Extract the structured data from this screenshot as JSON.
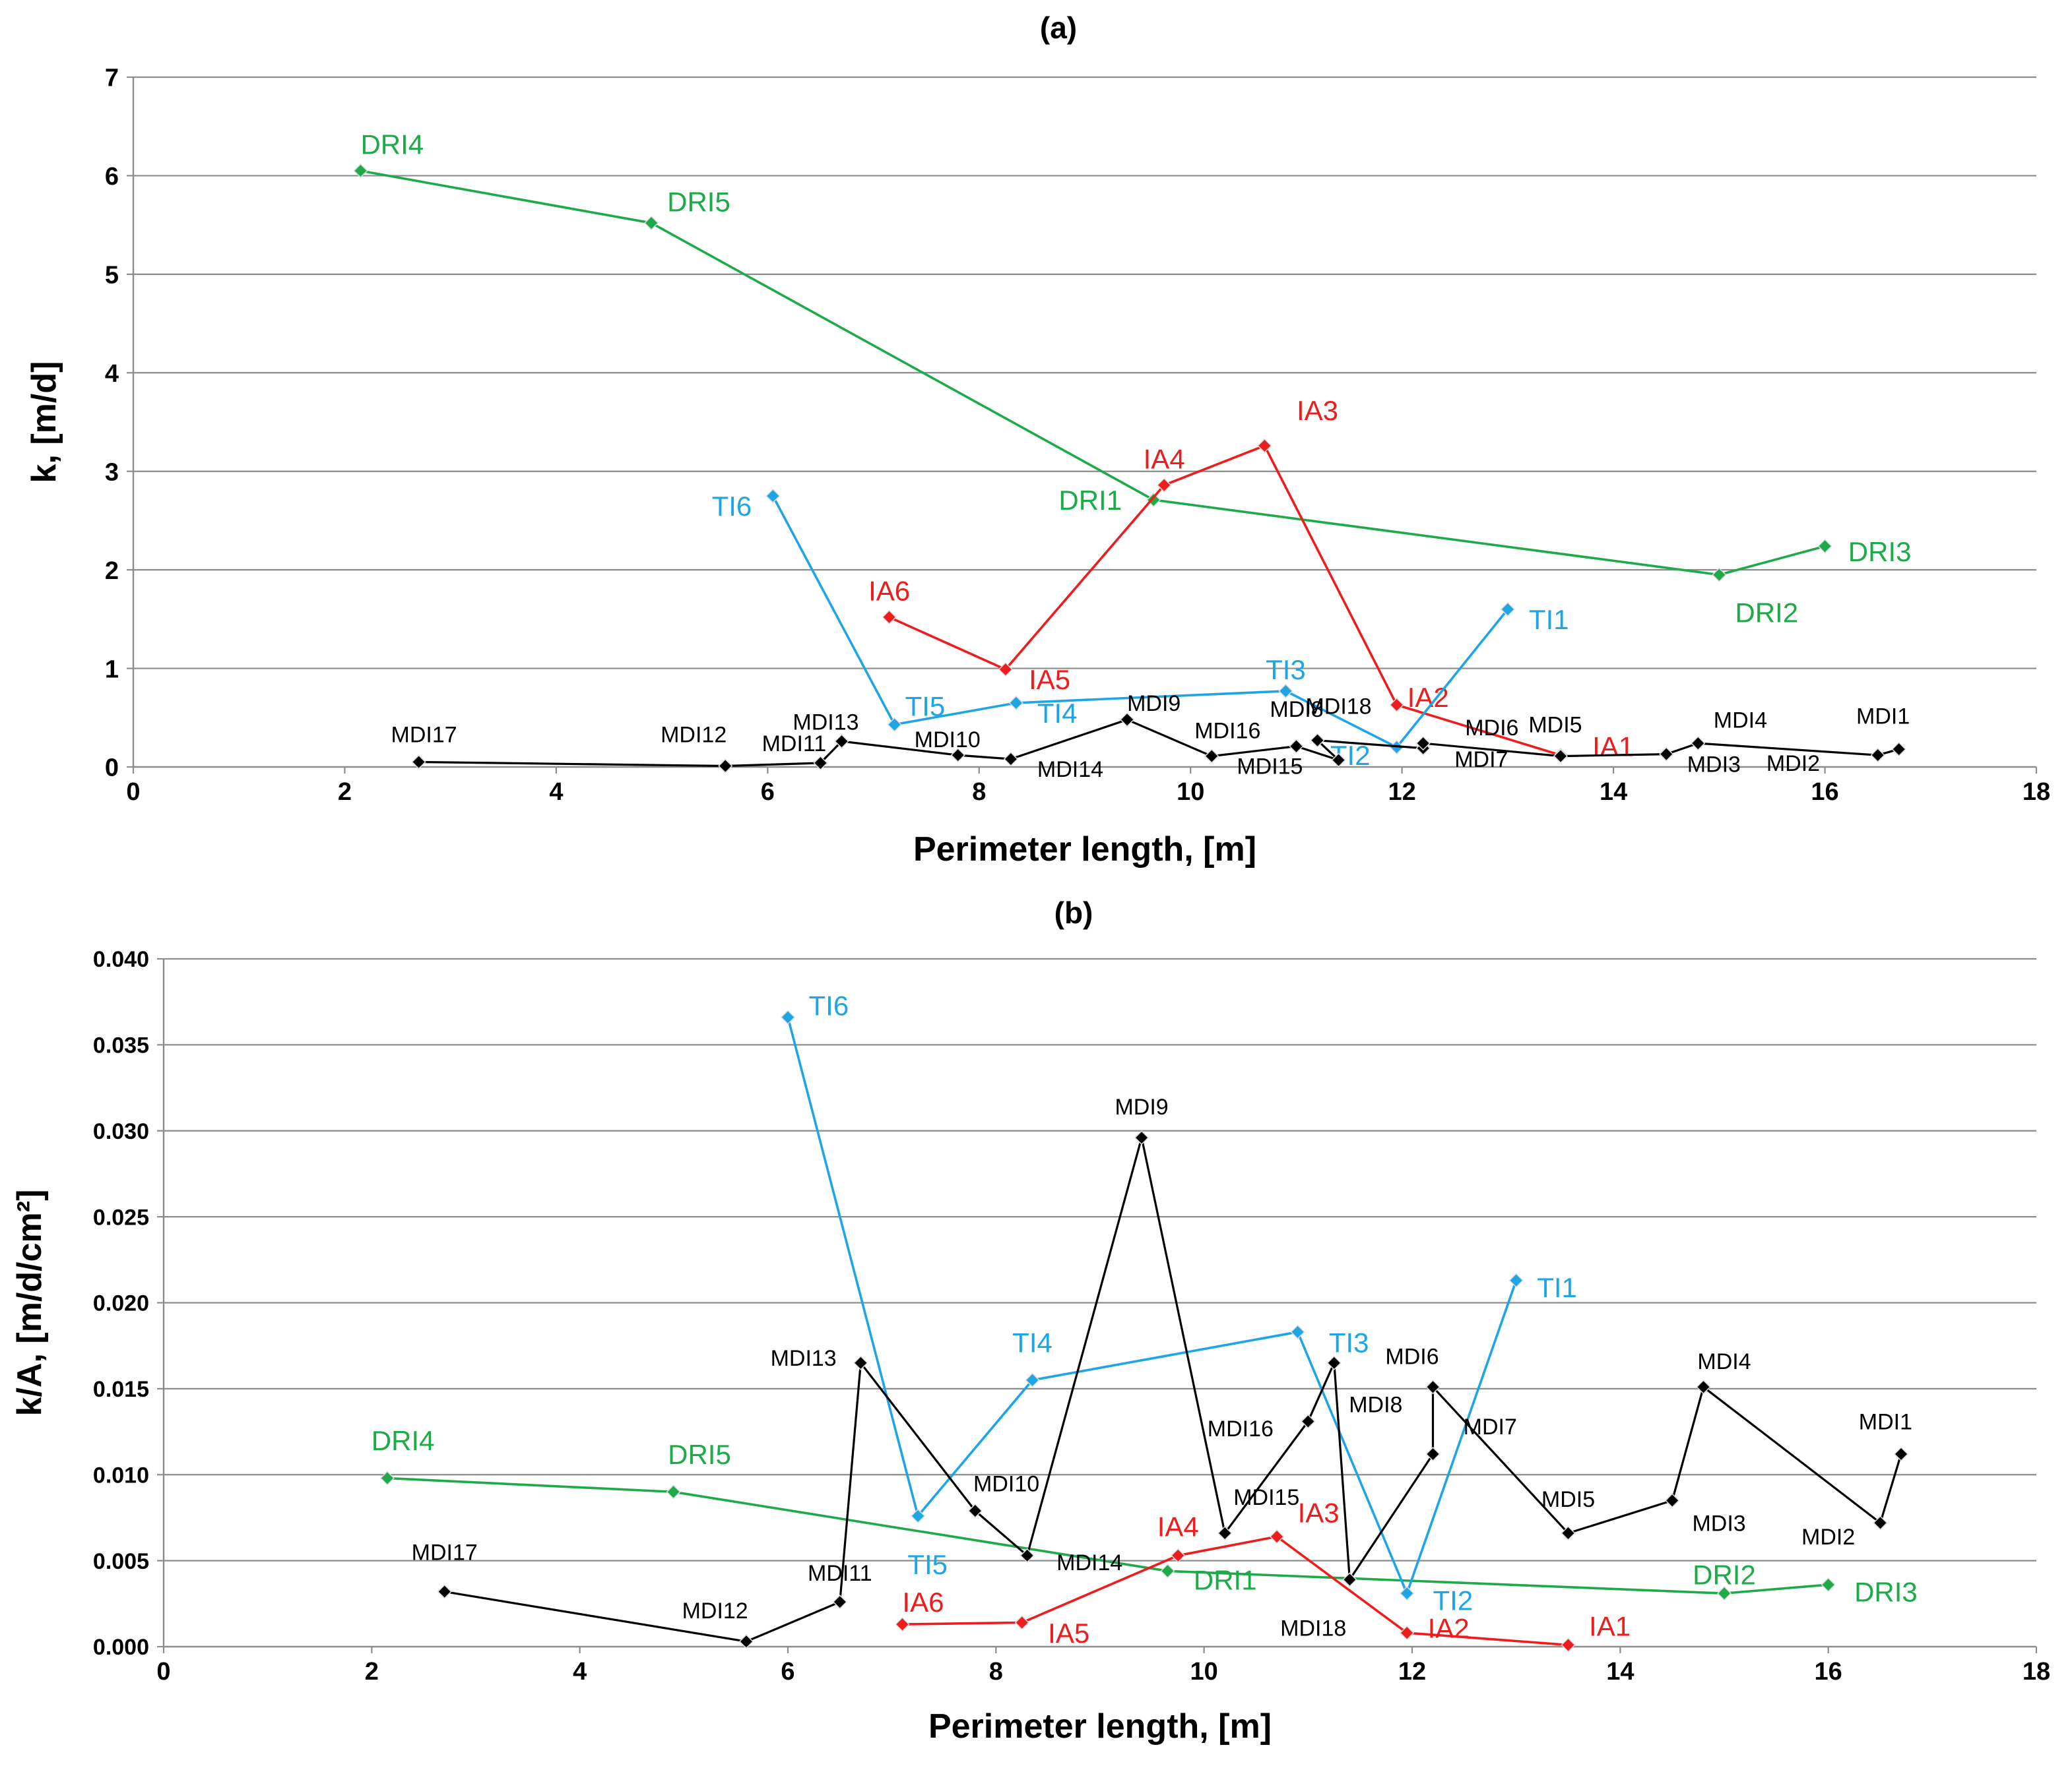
{
  "colors": {
    "green": "#1faa4a",
    "red": "#ee1c1c",
    "blue": "#1ea5e6",
    "black": "#000000",
    "grid": "#8c8c8c"
  },
  "chart_data": [
    {
      "type": "line",
      "title": "(a)",
      "xlabel": "Perimeter length, [m]",
      "ylabel": "k, [m/d]",
      "xlim": [
        0,
        18
      ],
      "ylim": [
        0,
        7
      ],
      "xticks": [
        "0",
        "2",
        "4",
        "6",
        "8",
        "10",
        "12",
        "14",
        "16",
        "18"
      ],
      "yticks": [
        "0",
        "1",
        "2",
        "3",
        "4",
        "5",
        "6",
        "7"
      ],
      "grid": true,
      "series": [
        {
          "name": "DRI",
          "color": "#1faa4a",
          "points": [
            {
              "x": 2.15,
              "y": 6.05,
              "label": "DRI4",
              "lx": 0.0,
              "ly": 0.27,
              "anchor": "start"
            },
            {
              "x": 4.9,
              "y": 5.52,
              "label": "DRI5",
              "lx": 0.15,
              "ly": 0.22,
              "anchor": "start"
            },
            {
              "x": 9.65,
              "y": 2.71,
              "label": "DRI1",
              "lx": -0.3,
              "ly": 0.0,
              "anchor": "end"
            },
            {
              "x": 15.0,
              "y": 1.95,
              "label": "DRI2",
              "lx": 0.15,
              "ly": -0.38,
              "anchor": "start"
            },
            {
              "x": 16.0,
              "y": 2.24,
              "label": "DRI3",
              "lx": 0.22,
              "ly": -0.05,
              "anchor": "start"
            }
          ]
        },
        {
          "name": "IA",
          "color": "#ee1c1c",
          "points": [
            {
              "x": 7.15,
              "y": 1.52,
              "label": "IA6",
              "lx": 0.0,
              "ly": 0.27,
              "anchor": "middle"
            },
            {
              "x": 8.25,
              "y": 0.99,
              "label": "IA5",
              "lx": 0.22,
              "ly": -0.1,
              "anchor": "start"
            },
            {
              "x": 9.75,
              "y": 2.86,
              "label": "IA4",
              "lx": 0.0,
              "ly": 0.27,
              "anchor": "middle"
            },
            {
              "x": 10.7,
              "y": 3.26,
              "label": "IA3",
              "lx": 0.5,
              "ly": 0.36,
              "anchor": "middle"
            },
            {
              "x": 11.95,
              "y": 0.63,
              "label": "IA2",
              "lx": 0.1,
              "ly": 0.08,
              "anchor": "start"
            },
            {
              "x": 13.5,
              "y": 0.12,
              "label": "IA1",
              "lx": 0.3,
              "ly": 0.09,
              "anchor": "start"
            }
          ]
        },
        {
          "name": "TI",
          "color": "#1ea5e6",
          "points": [
            {
              "x": 6.05,
              "y": 2.75,
              "label": "TI6",
              "lx": -0.2,
              "ly": -0.1,
              "anchor": "end"
            },
            {
              "x": 7.2,
              "y": 0.43,
              "label": "TI5",
              "lx": 0.1,
              "ly": 0.19,
              "anchor": "start"
            },
            {
              "x": 8.35,
              "y": 0.65,
              "label": "TI4",
              "lx": 0.2,
              "ly": -0.1,
              "anchor": "start"
            },
            {
              "x": 10.9,
              "y": 0.77,
              "label": "TI3",
              "lx": 0.0,
              "ly": 0.22,
              "anchor": "middle"
            },
            {
              "x": 11.95,
              "y": 0.2,
              "label": "TI2",
              "lx": -0.25,
              "ly": -0.08,
              "anchor": "end"
            },
            {
              "x": 13.0,
              "y": 1.6,
              "label": "TI1",
              "lx": 0.2,
              "ly": -0.1,
              "anchor": "start"
            }
          ]
        },
        {
          "name": "MDI",
          "color": "#000000",
          "points": [
            {
              "x": 2.7,
              "y": 0.05,
              "label": "MDI17",
              "lx": 0.05,
              "ly": 0.28,
              "anchor": "middle"
            },
            {
              "x": 5.6,
              "y": 0.01,
              "label": "MDI12",
              "lx": -0.3,
              "ly": 0.32,
              "anchor": "middle"
            },
            {
              "x": 6.5,
              "y": 0.04,
              "label": "MDI11",
              "lx": -0.25,
              "ly": 0.2,
              "anchor": "middle"
            },
            {
              "x": 6.7,
              "y": 0.26,
              "label": "MDI13",
              "lx": -0.15,
              "ly": 0.2,
              "anchor": "middle"
            },
            {
              "x": 7.8,
              "y": 0.12,
              "label": "MDI10",
              "lx": -0.1,
              "ly": 0.16,
              "anchor": "middle"
            },
            {
              "x": 8.3,
              "y": 0.08,
              "label": "MDI14",
              "lx": 0.25,
              "ly": -0.1,
              "anchor": "start"
            },
            {
              "x": 9.4,
              "y": 0.48,
              "label": "MDI9",
              "lx": 0.0,
              "ly": 0.17,
              "anchor": "start"
            },
            {
              "x": 10.2,
              "y": 0.11,
              "label": "MDI16",
              "lx": 0.15,
              "ly": 0.26,
              "anchor": "middle"
            },
            {
              "x": 11.0,
              "y": 0.21,
              "label": "MDI8",
              "lx": -0.25,
              "ly": 0.38,
              "anchor": "start"
            },
            {
              "x": 11.4,
              "y": 0.07,
              "label": "MDI15",
              "lx": -0.65,
              "ly": -0.06,
              "anchor": "middle"
            },
            {
              "x": 11.2,
              "y": 0.27,
              "label": "MDI18",
              "lx": 0.2,
              "ly": 0.35,
              "anchor": "middle"
            },
            {
              "x": 12.2,
              "y": 0.19,
              "label": "MDI7",
              "lx": 0.55,
              "ly": -0.11,
              "anchor": "middle"
            },
            {
              "x": 12.2,
              "y": 0.24,
              "label": "MDI6",
              "lx": 0.65,
              "ly": 0.16,
              "anchor": "middle"
            },
            {
              "x": 13.5,
              "y": 0.11,
              "label": "MDI5",
              "lx": -0.05,
              "ly": 0.32,
              "anchor": "middle"
            },
            {
              "x": 14.5,
              "y": 0.13,
              "label": "MDI3",
              "lx": 0.45,
              "ly": -0.1,
              "anchor": "middle"
            },
            {
              "x": 14.8,
              "y": 0.24,
              "label": "MDI4",
              "lx": 0.4,
              "ly": 0.24,
              "anchor": "middle"
            },
            {
              "x": 16.5,
              "y": 0.12,
              "label": "MDI2",
              "lx": -0.8,
              "ly": -0.08,
              "anchor": "middle"
            },
            {
              "x": 16.7,
              "y": 0.18,
              "label": "MDI1",
              "lx": -0.15,
              "ly": 0.34,
              "anchor": "middle"
            }
          ]
        }
      ]
    },
    {
      "type": "line",
      "title": "(b)",
      "xlabel": "Perimeter length, [m]",
      "ylabel": "k/A, [m/d/cm²]",
      "xlim": [
        0,
        18
      ],
      "ylim": [
        0,
        0.04
      ],
      "xticks": [
        "0",
        "2",
        "4",
        "6",
        "8",
        "10",
        "12",
        "14",
        "16",
        "18"
      ],
      "yticks": [
        "0.000",
        "0.005",
        "0.010",
        "0.015",
        "0.020",
        "0.025",
        "0.030",
        "0.035",
        "0.040"
      ],
      "grid": true,
      "series": [
        {
          "name": "DRI",
          "color": "#1faa4a",
          "points": [
            {
              "x": 2.15,
              "y": 0.0098,
              "label": "DRI4",
              "lx": 0.15,
              "ly": 0.0022,
              "anchor": "middle"
            },
            {
              "x": 4.9,
              "y": 0.009,
              "label": "DRI5",
              "lx": 0.25,
              "ly": 0.0022,
              "anchor": "middle"
            },
            {
              "x": 9.65,
              "y": 0.0044,
              "label": "DRI1",
              "lx": 0.25,
              "ly": -0.0005,
              "anchor": "start"
            },
            {
              "x": 15.0,
              "y": 0.0031,
              "label": "DRI2",
              "lx": 0.0,
              "ly": 0.0011,
              "anchor": "middle"
            },
            {
              "x": 16.0,
              "y": 0.0036,
              "label": "DRI3",
              "lx": 0.25,
              "ly": -0.0004,
              "anchor": "start"
            }
          ]
        },
        {
          "name": "IA",
          "color": "#ee1c1c",
          "points": [
            {
              "x": 7.1,
              "y": 0.0013,
              "label": "IA6",
              "lx": 0.0,
              "ly": 0.0013,
              "anchor": "start"
            },
            {
              "x": 8.25,
              "y": 0.0014,
              "label": "IA5",
              "lx": 0.25,
              "ly": -0.0006,
              "anchor": "start"
            },
            {
              "x": 9.75,
              "y": 0.0053,
              "label": "IA4",
              "lx": 0.0,
              "ly": 0.0017,
              "anchor": "middle"
            },
            {
              "x": 10.7,
              "y": 0.0064,
              "label": "IA3",
              "lx": 0.2,
              "ly": 0.0014,
              "anchor": "start"
            },
            {
              "x": 11.95,
              "y": 0.0008,
              "label": "IA2",
              "lx": 0.2,
              "ly": 0.0003,
              "anchor": "start"
            },
            {
              "x": 13.5,
              "y": 0.0001,
              "label": "IA1",
              "lx": 0.2,
              "ly": 0.0011,
              "anchor": "start"
            }
          ]
        },
        {
          "name": "TI",
          "color": "#1ea5e6",
          "points": [
            {
              "x": 6.0,
              "y": 0.0366,
              "label": "TI6",
              "lx": 0.2,
              "ly": 0.0007,
              "anchor": "start"
            },
            {
              "x": 7.25,
              "y": 0.0076,
              "label": "TI5",
              "lx": -0.1,
              "ly": -0.0028,
              "anchor": "start"
            },
            {
              "x": 8.35,
              "y": 0.0155,
              "label": "TI4",
              "lx": 0.0,
              "ly": 0.0022,
              "anchor": "middle"
            },
            {
              "x": 10.9,
              "y": 0.0183,
              "label": "TI3",
              "lx": 0.3,
              "ly": -0.0006,
              "anchor": "start"
            },
            {
              "x": 11.95,
              "y": 0.0031,
              "label": "TI2",
              "lx": 0.25,
              "ly": -0.0004,
              "anchor": "start"
            },
            {
              "x": 13.0,
              "y": 0.0213,
              "label": "TI1",
              "lx": 0.2,
              "ly": -0.0004,
              "anchor": "start"
            }
          ]
        },
        {
          "name": "MDI",
          "color": "#000000",
          "points": [
            {
              "x": 2.7,
              "y": 0.0032,
              "label": "MDI17",
              "lx": 0.0,
              "ly": 0.0023,
              "anchor": "middle"
            },
            {
              "x": 5.6,
              "y": 0.0003,
              "label": "MDI12",
              "lx": -0.3,
              "ly": 0.0018,
              "anchor": "middle"
            },
            {
              "x": 6.5,
              "y": 0.0026,
              "label": "MDI11",
              "lx": 0.0,
              "ly": 0.0017,
              "anchor": "middle"
            },
            {
              "x": 6.7,
              "y": 0.0165,
              "label": "MDI13",
              "lx": -0.55,
              "ly": 0.0003,
              "anchor": "middle"
            },
            {
              "x": 7.8,
              "y": 0.0079,
              "label": "MDI10",
              "lx": 0.3,
              "ly": 0.0016,
              "anchor": "middle"
            },
            {
              "x": 8.3,
              "y": 0.0053,
              "label": "MDI14",
              "lx": 0.6,
              "ly": -0.0004,
              "anchor": "middle"
            },
            {
              "x": 9.4,
              "y": 0.0296,
              "label": "MDI9",
              "lx": 0.0,
              "ly": 0.0018,
              "anchor": "middle"
            },
            {
              "x": 10.2,
              "y": 0.0066,
              "label": "MDI15",
              "lx": 0.4,
              "ly": 0.0021,
              "anchor": "middle"
            },
            {
              "x": 11.0,
              "y": 0.0131,
              "label": "MDI16",
              "lx": -0.65,
              "ly": -0.0004,
              "anchor": "middle"
            },
            {
              "x": 11.25,
              "y": 0.0165,
              "label": "MDI8",
              "lx": 0.4,
              "ly": -0.0024,
              "anchor": "middle"
            },
            {
              "x": 11.4,
              "y": 0.0039,
              "label": "MDI18",
              "lx": -0.35,
              "ly": -0.0028,
              "anchor": "middle"
            },
            {
              "x": 12.2,
              "y": 0.0112,
              "label": "MDI7",
              "lx": 0.55,
              "ly": 0.0016,
              "anchor": "middle"
            },
            {
              "x": 12.2,
              "y": 0.0151,
              "label": "MDI6",
              "lx": -0.2,
              "ly": 0.0018,
              "anchor": "middle"
            },
            {
              "x": 13.5,
              "y": 0.0066,
              "label": "MDI5",
              "lx": 0.0,
              "ly": 0.002,
              "anchor": "middle"
            },
            {
              "x": 14.5,
              "y": 0.0085,
              "label": "MDI3",
              "lx": 0.45,
              "ly": -0.0013,
              "anchor": "middle"
            },
            {
              "x": 14.8,
              "y": 0.0151,
              "label": "MDI4",
              "lx": 0.2,
              "ly": 0.0015,
              "anchor": "middle"
            },
            {
              "x": 16.5,
              "y": 0.0072,
              "label": "MDI2",
              "lx": -0.5,
              "ly": -0.0008,
              "anchor": "middle"
            },
            {
              "x": 16.7,
              "y": 0.0112,
              "label": "MDI1",
              "lx": -0.15,
              "ly": 0.0019,
              "anchor": "middle"
            }
          ]
        }
      ]
    }
  ]
}
